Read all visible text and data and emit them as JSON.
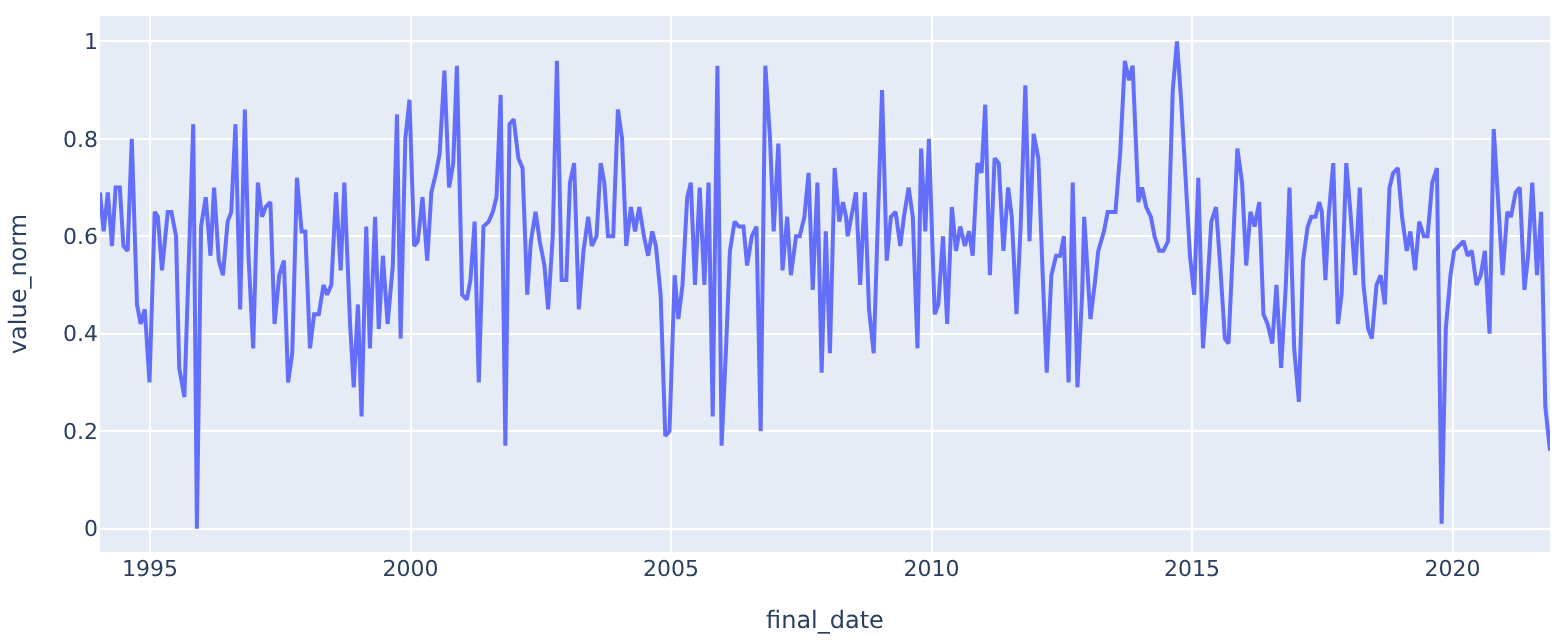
{
  "chart_data": {
    "type": "line",
    "xlabel": "final_date",
    "ylabel": "value_norm",
    "xlim": [
      1994.04,
      2021.87
    ],
    "xticks": [
      1995,
      2000,
      2005,
      2010,
      2015,
      2020
    ],
    "ylim": [
      -0.048,
      1.052
    ],
    "yticks": [
      0,
      0.2,
      0.4,
      0.6,
      0.8,
      1
    ],
    "grid": true,
    "marker": "none",
    "line_style": "solid",
    "series": [
      {
        "color": "#636efa",
        "x": [
          1994.04,
          1994.11,
          1994.19,
          1994.27,
          1994.34,
          1994.42,
          1994.49,
          1994.57,
          1994.65,
          1994.75,
          1994.82,
          1994.9,
          1994.99,
          1995.09,
          1995.15,
          1995.23,
          1995.34,
          1995.41,
          1995.5,
          1995.56,
          1995.66,
          1995.83,
          1995.9,
          1995.98,
          1996.07,
          1996.16,
          1996.23,
          1996.32,
          1996.4,
          1996.49,
          1996.56,
          1996.64,
          1996.73,
          1996.82,
          1996.89,
          1996.98,
          1997.07,
          1997.15,
          1997.22,
          1997.31,
          1997.39,
          1997.48,
          1997.57,
          1997.65,
          1997.73,
          1997.82,
          1997.91,
          1997.98,
          1998.07,
          1998.15,
          1998.24,
          1998.33,
          1998.4,
          1998.48,
          1998.57,
          1998.66,
          1998.73,
          1998.84,
          1998.91,
          1998.99,
          1999.06,
          1999.15,
          1999.22,
          1999.32,
          1999.39,
          1999.47,
          1999.56,
          1999.66,
          1999.74,
          1999.81,
          1999.9,
          1999.98,
          2000.07,
          2000.14,
          2000.23,
          2000.32,
          2000.4,
          2000.49,
          2000.56,
          2000.65,
          2000.74,
          2000.82,
          2000.89,
          2000.99,
          2001.08,
          2001.15,
          2001.23,
          2001.31,
          2001.4,
          2001.5,
          2001.58,
          2001.65,
          2001.73,
          2001.82,
          2001.9,
          2001.98,
          2002.07,
          2002.15,
          2002.24,
          2002.31,
          2002.4,
          2002.48,
          2002.57,
          2002.64,
          2002.73,
          2002.81,
          2002.9,
          2002.99,
          2003.06,
          2003.14,
          2003.23,
          2003.32,
          2003.41,
          2003.48,
          2003.57,
          2003.65,
          2003.72,
          2003.79,
          2003.89,
          2003.98,
          2004.06,
          2004.14,
          2004.23,
          2004.31,
          2004.39,
          2004.48,
          2004.56,
          2004.64,
          2004.71,
          2004.8,
          2004.89,
          2004.97,
          2005.07,
          2005.14,
          2005.22,
          2005.31,
          2005.38,
          2005.46,
          2005.55,
          2005.64,
          2005.72,
          2005.8,
          2005.89,
          2005.97,
          2006.06,
          2006.13,
          2006.22,
          2006.3,
          2006.39,
          2006.46,
          2006.55,
          2006.64,
          2006.72,
          2006.81,
          2006.9,
          2006.97,
          2007.06,
          2007.14,
          2007.23,
          2007.3,
          2007.4,
          2007.47,
          2007.56,
          2007.64,
          2007.72,
          2007.81,
          2007.89,
          2007.97,
          2008.05,
          2008.14,
          2008.23,
          2008.3,
          2008.36,
          2008.39,
          2008.46,
          2008.55,
          2008.63,
          2008.72,
          2008.8,
          2008.89,
          2008.96,
          2009.05,
          2009.14,
          2009.22,
          2009.31,
          2009.4,
          2009.47,
          2009.56,
          2009.64,
          2009.73,
          2009.8,
          2009.88,
          2009.95,
          2010.06,
          2010.13,
          2010.22,
          2010.3,
          2010.39,
          2010.47,
          2010.55,
          2010.64,
          2010.72,
          2010.79,
          2010.88,
          2010.96,
          2011.03,
          2011.12,
          2011.21,
          2011.29,
          2011.38,
          2011.47,
          2011.54,
          2011.63,
          2011.71,
          2011.8,
          2011.88,
          2011.96,
          2012.05,
          2012.13,
          2012.21,
          2012.3,
          2012.39,
          2012.47,
          2012.54,
          2012.63,
          2012.71,
          2012.8,
          2012.89,
          2012.93,
          2013.05,
          2013.13,
          2013.2,
          2013.31,
          2013.38,
          2013.53,
          2013.62,
          2013.71,
          2013.79,
          2013.86,
          2013.97,
          2014.04,
          2014.12,
          2014.21,
          2014.28,
          2014.37,
          2014.45,
          2014.54,
          2014.63,
          2014.71,
          2014.79,
          2014.87,
          2014.96,
          2015.04,
          2015.12,
          2015.21,
          2015.29,
          2015.37,
          2015.46,
          2015.54,
          2015.63,
          2015.7,
          2015.79,
          2015.87,
          2015.96,
          2016.04,
          2016.12,
          2016.2,
          2016.29,
          2016.37,
          2016.45,
          2016.54,
          2016.62,
          2016.71,
          2016.8,
          2016.87,
          2016.96,
          2017.05,
          2017.13,
          2017.22,
          2017.29,
          2017.37,
          2017.44,
          2017.49,
          2017.56,
          2017.62,
          2017.71,
          2017.8,
          2017.87,
          2017.96,
          2018.04,
          2018.13,
          2018.22,
          2018.29,
          2018.38,
          2018.45,
          2018.54,
          2018.62,
          2018.7,
          2018.79,
          2018.86,
          2018.95,
          2019.03,
          2019.12,
          2019.19,
          2019.28,
          2019.36,
          2019.45,
          2019.52,
          2019.61,
          2019.7,
          2019.79,
          2019.87,
          2019.96,
          2020.03,
          2020.12,
          2020.21,
          2020.29,
          2020.37,
          2020.46,
          2020.54,
          2020.62,
          2020.71,
          2020.79,
          2020.87,
          2020.96,
          2021.05,
          2021.12,
          2021.21,
          2021.29,
          2021.38,
          2021.45,
          2021.53,
          2021.62,
          2021.7,
          2021.78,
          2021.87
        ],
        "values": [
          0.69,
          0.61,
          0.69,
          0.58,
          0.7,
          0.7,
          0.58,
          0.57,
          0.8,
          0.46,
          0.42,
          0.45,
          0.3,
          0.65,
          0.64,
          0.53,
          0.65,
          0.65,
          0.6,
          0.33,
          0.27,
          0.83,
          0.0,
          0.62,
          0.68,
          0.56,
          0.7,
          0.55,
          0.52,
          0.63,
          0.65,
          0.83,
          0.45,
          0.86,
          0.56,
          0.37,
          0.71,
          0.64,
          0.66,
          0.67,
          0.42,
          0.52,
          0.55,
          0.3,
          0.36,
          0.72,
          0.61,
          0.61,
          0.37,
          0.44,
          0.44,
          0.5,
          0.48,
          0.5,
          0.69,
          0.53,
          0.71,
          0.42,
          0.29,
          0.46,
          0.23,
          0.62,
          0.37,
          0.64,
          0.41,
          0.56,
          0.42,
          0.54,
          0.85,
          0.39,
          0.8,
          0.88,
          0.58,
          0.59,
          0.68,
          0.55,
          0.69,
          0.73,
          0.77,
          0.94,
          0.7,
          0.75,
          0.95,
          0.48,
          0.47,
          0.51,
          0.63,
          0.3,
          0.62,
          0.63,
          0.65,
          0.68,
          0.89,
          0.17,
          0.83,
          0.84,
          0.76,
          0.74,
          0.48,
          0.59,
          0.65,
          0.59,
          0.54,
          0.45,
          0.6,
          0.96,
          0.51,
          0.51,
          0.71,
          0.75,
          0.45,
          0.57,
          0.64,
          0.58,
          0.6,
          0.75,
          0.71,
          0.6,
          0.6,
          0.86,
          0.8,
          0.58,
          0.66,
          0.61,
          0.66,
          0.6,
          0.56,
          0.61,
          0.58,
          0.48,
          0.19,
          0.2,
          0.52,
          0.43,
          0.5,
          0.68,
          0.71,
          0.5,
          0.7,
          0.5,
          0.71,
          0.23,
          0.95,
          0.17,
          0.38,
          0.57,
          0.63,
          0.62,
          0.62,
          0.54,
          0.6,
          0.62,
          0.2,
          0.95,
          0.8,
          0.61,
          0.79,
          0.53,
          0.64,
          0.52,
          0.6,
          0.6,
          0.64,
          0.73,
          0.49,
          0.71,
          0.32,
          0.61,
          0.36,
          0.74,
          0.63,
          0.67,
          0.64,
          0.6,
          0.64,
          0.69,
          0.5,
          0.69,
          0.45,
          0.36,
          0.6,
          0.9,
          0.55,
          0.64,
          0.65,
          0.58,
          0.64,
          0.7,
          0.64,
          0.37,
          0.78,
          0.61,
          0.8,
          0.44,
          0.46,
          0.6,
          0.42,
          0.66,
          0.57,
          0.62,
          0.58,
          0.61,
          0.56,
          0.75,
          0.73,
          0.87,
          0.52,
          0.76,
          0.75,
          0.57,
          0.7,
          0.64,
          0.44,
          0.62,
          0.91,
          0.59,
          0.81,
          0.76,
          0.53,
          0.32,
          0.52,
          0.56,
          0.56,
          0.6,
          0.3,
          0.71,
          0.29,
          0.48,
          0.64,
          0.43,
          0.5,
          0.57,
          0.61,
          0.65,
          0.65,
          0.77,
          0.96,
          0.92,
          0.95,
          0.67,
          0.7,
          0.66,
          0.64,
          0.6,
          0.57,
          0.57,
          0.59,
          0.9,
          1.0,
          0.88,
          0.73,
          0.56,
          0.48,
          0.72,
          0.37,
          0.49,
          0.63,
          0.66,
          0.54,
          0.39,
          0.38,
          0.59,
          0.78,
          0.71,
          0.54,
          0.65,
          0.62,
          0.67,
          0.44,
          0.42,
          0.38,
          0.5,
          0.33,
          0.5,
          0.7,
          0.37,
          0.26,
          0.55,
          0.62,
          0.64,
          0.64,
          0.67,
          0.65,
          0.51,
          0.64,
          0.75,
          0.42,
          0.48,
          0.75,
          0.65,
          0.52,
          0.7,
          0.5,
          0.41,
          0.39,
          0.5,
          0.52,
          0.46,
          0.7,
          0.73,
          0.74,
          0.64,
          0.57,
          0.61,
          0.53,
          0.63,
          0.6,
          0.6,
          0.71,
          0.74,
          0.01,
          0.41,
          0.52,
          0.57,
          0.58,
          0.59,
          0.56,
          0.57,
          0.5,
          0.52,
          0.57,
          0.4,
          0.82,
          0.68,
          0.52,
          0.65,
          0.64,
          0.69,
          0.7,
          0.49,
          0.56,
          0.71,
          0.52,
          0.65,
          0.25,
          0.16
        ]
      }
    ]
  }
}
